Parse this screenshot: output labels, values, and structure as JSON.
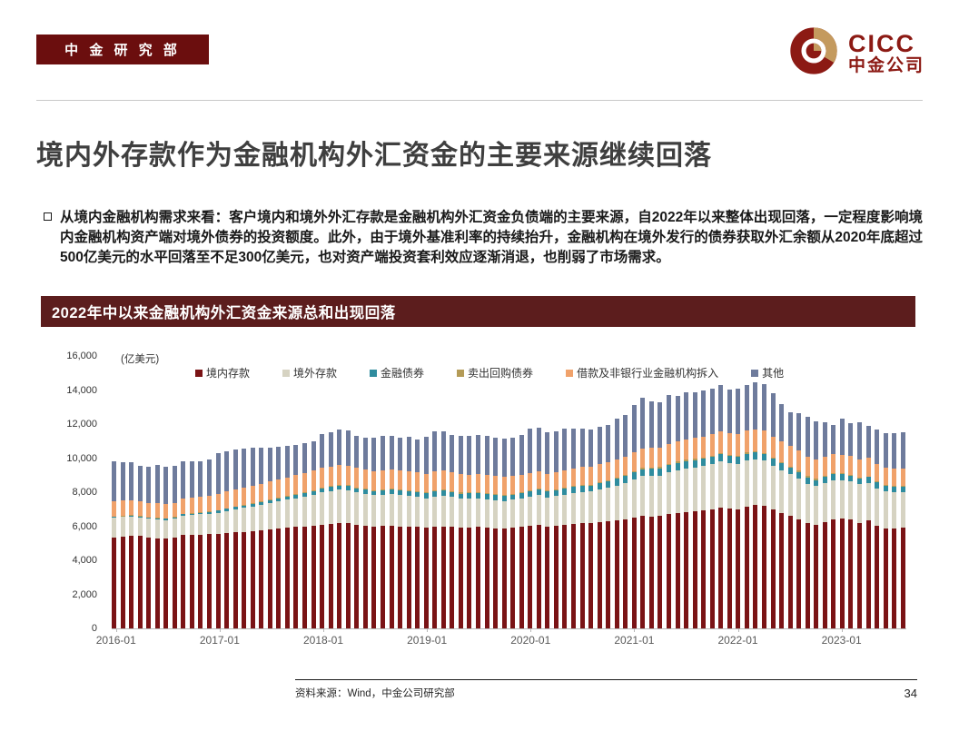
{
  "header": {
    "badge": "中 金 研 究 部",
    "logo_text": "CICC",
    "logo_subtext": "中金公司"
  },
  "title": "境内外存款作为金融机构外汇资金的主要来源继续回落",
  "bullet": {
    "text": "从境内金融机构需求来看：客户境内和境外外汇存款是金融机构外汇资金负债端的主要来源，自2022年以来整体出现回落，一定程度影响境内金融机构资产端对境外债券的投资额度。此外，由于境外基准利率的持续抬升，金融机构在境外发行的债券获取外汇余额从2020年底超过500亿美元的水平回落至不足300亿美元，也对资产端投资套利效应逐渐消退，也削弱了市场需求。"
  },
  "panel": {
    "title": "2022年中以来金融机构外汇资金来源总和出现回落"
  },
  "footer": {
    "source": "资料来源：Wind，中金公司研究部",
    "page": "34"
  },
  "colors": {
    "badge_bg": "#6B0E0E",
    "panel_header_bg": "#5C1D1D",
    "logo_red": "#8C1A14",
    "logo_gold": "#C49A5E"
  },
  "chart_data": {
    "type": "bar",
    "stacked": true,
    "title": "2022年中以来金融机构外汇资金来源总和出现回落",
    "unit": "(亿美元)",
    "ylim": [
      0,
      16000
    ],
    "yticks": [
      0,
      2000,
      4000,
      6000,
      8000,
      10000,
      12000,
      14000,
      16000
    ],
    "grid": false,
    "legend_position": "top",
    "x_tick_labels": [
      "2016-01",
      "2017-01",
      "2018-01",
      "2019-01",
      "2020-01",
      "2021-01",
      "2022-01",
      "2023-01"
    ],
    "categories": [
      "2016-01",
      "2016-02",
      "2016-03",
      "2016-04",
      "2016-05",
      "2016-06",
      "2016-07",
      "2016-08",
      "2016-09",
      "2016-10",
      "2016-11",
      "2016-12",
      "2017-01",
      "2017-02",
      "2017-03",
      "2017-04",
      "2017-05",
      "2017-06",
      "2017-07",
      "2017-08",
      "2017-09",
      "2017-10",
      "2017-11",
      "2017-12",
      "2018-01",
      "2018-02",
      "2018-03",
      "2018-04",
      "2018-05",
      "2018-06",
      "2018-07",
      "2018-08",
      "2018-09",
      "2018-10",
      "2018-11",
      "2018-12",
      "2019-01",
      "2019-02",
      "2019-03",
      "2019-04",
      "2019-05",
      "2019-06",
      "2019-07",
      "2019-08",
      "2019-09",
      "2019-10",
      "2019-11",
      "2019-12",
      "2020-01",
      "2020-02",
      "2020-03",
      "2020-04",
      "2020-05",
      "2020-06",
      "2020-07",
      "2020-08",
      "2020-09",
      "2020-10",
      "2020-11",
      "2020-12",
      "2021-01",
      "2021-02",
      "2021-03",
      "2021-04",
      "2021-05",
      "2021-06",
      "2021-07",
      "2021-08",
      "2021-09",
      "2021-10",
      "2021-11",
      "2021-12",
      "2022-01",
      "2022-02",
      "2022-03",
      "2022-04",
      "2022-05",
      "2022-06",
      "2022-07",
      "2022-08",
      "2022-09",
      "2022-10",
      "2022-11",
      "2022-12",
      "2023-01",
      "2023-02",
      "2023-03",
      "2023-04",
      "2023-05",
      "2023-06",
      "2023-07",
      "2023-08"
    ],
    "series": [
      {
        "name": "境内存款",
        "color": "#7A1315",
        "values": [
          5350,
          5400,
          5450,
          5420,
          5350,
          5300,
          5280,
          5320,
          5480,
          5500,
          5520,
          5540,
          5550,
          5600,
          5650,
          5680,
          5700,
          5750,
          5800,
          5850,
          5900,
          5950,
          6000,
          6050,
          6100,
          6150,
          6200,
          6180,
          6100,
          6050,
          6000,
          6020,
          6050,
          6000,
          5980,
          5950,
          5900,
          5980,
          6000,
          5950,
          5900,
          5920,
          5950,
          5920,
          5880,
          5850,
          5900,
          5950,
          6050,
          6100,
          6000,
          6050,
          6100,
          6150,
          6200,
          6180,
          6250,
          6300,
          6350,
          6400,
          6500,
          6600,
          6550,
          6600,
          6700,
          6800,
          6850,
          6900,
          6950,
          7000,
          7100,
          7050,
          7000,
          7150,
          7250,
          7200,
          7000,
          6800,
          6610,
          6420,
          6200,
          6100,
          6230,
          6420,
          6450,
          6400,
          6210,
          6340,
          6050,
          5880,
          5870,
          5900
        ]
      },
      {
        "name": "境外存款",
        "color": "#D6D3C2",
        "values": [
          1150,
          1140,
          1130,
          1100,
          1080,
          1100,
          1090,
          1110,
          1150,
          1160,
          1180,
          1200,
          1250,
          1300,
          1350,
          1400,
          1450,
          1500,
          1550,
          1600,
          1650,
          1700,
          1750,
          1800,
          1900,
          1920,
          1950,
          1930,
          1880,
          1850,
          1820,
          1840,
          1850,
          1830,
          1800,
          1780,
          1750,
          1780,
          1800,
          1760,
          1720,
          1700,
          1690,
          1680,
          1650,
          1630,
          1650,
          1680,
          1700,
          1720,
          1700,
          1720,
          1750,
          1800,
          1820,
          1850,
          1900,
          1950,
          2050,
          2150,
          2250,
          2350,
          2400,
          2380,
          2450,
          2500,
          2550,
          2560,
          2600,
          2650,
          2700,
          2650,
          2650,
          2700,
          2680,
          2650,
          2550,
          2500,
          2450,
          2400,
          2300,
          2250,
          2300,
          2280,
          2250,
          2230,
          2250,
          2200,
          2180,
          2150,
          2120,
          2100
        ]
      },
      {
        "name": "金融债券",
        "color": "#2F8C9E",
        "values": [
          40,
          45,
          50,
          55,
          60,
          65,
          70,
          75,
          80,
          85,
          90,
          100,
          110,
          120,
          130,
          140,
          150,
          160,
          170,
          180,
          190,
          200,
          210,
          215,
          220,
          230,
          240,
          245,
          250,
          255,
          260,
          265,
          270,
          272,
          275,
          278,
          280,
          285,
          290,
          295,
          300,
          302,
          305,
          308,
          310,
          312,
          315,
          318,
          320,
          325,
          330,
          335,
          340,
          345,
          350,
          355,
          360,
          370,
          380,
          390,
          400,
          410,
          415,
          420,
          425,
          430,
          430,
          430,
          430,
          430,
          430,
          425,
          420,
          415,
          410,
          405,
          400,
          390,
          385,
          380,
          375,
          370,
          365,
          360,
          350,
          348,
          345,
          342,
          338,
          332,
          326,
          320
        ]
      },
      {
        "name": "卖出回购债券",
        "color": "#B49B57",
        "values": [
          30,
          30,
          30,
          30,
          30,
          30,
          30,
          30,
          30,
          30,
          30,
          30,
          40,
          40,
          40,
          40,
          40,
          40,
          40,
          40,
          40,
          40,
          40,
          40,
          50,
          50,
          50,
          50,
          50,
          50,
          50,
          50,
          50,
          50,
          50,
          50,
          55,
          55,
          55,
          55,
          55,
          55,
          55,
          55,
          55,
          55,
          55,
          55,
          60,
          60,
          60,
          60,
          60,
          60,
          60,
          60,
          60,
          60,
          60,
          60,
          70,
          70,
          70,
          70,
          70,
          70,
          70,
          70,
          70,
          70,
          70,
          70,
          60,
          60,
          60,
          60,
          60,
          60,
          60,
          60,
          60,
          60,
          60,
          60,
          50,
          50,
          50,
          50,
          50,
          50,
          50,
          50
        ]
      },
      {
        "name": "借款及非银行业金融机构拆入",
        "color": "#F0A26B",
        "values": [
          900,
          890,
          880,
          850,
          840,
          850,
          840,
          850,
          880,
          890,
          900,
          920,
          950,
          970,
          990,
          1010,
          1030,
          1050,
          1070,
          1090,
          1100,
          1120,
          1140,
          1150,
          1150,
          1160,
          1170,
          1160,
          1140,
          1120,
          1100,
          1110,
          1120,
          1110,
          1100,
          1100,
          1100,
          1110,
          1120,
          1100,
          1080,
          1060,
          1050,
          1060,
          1050,
          1040,
          1050,
          1020,
          1000,
          1010,
          1000,
          1010,
          1020,
          1030,
          1040,
          1050,
          1060,
          1070,
          1080,
          1100,
          1120,
          1150,
          1160,
          1170,
          1180,
          1200,
          1210,
          1220,
          1230,
          1240,
          1250,
          1260,
          1280,
          1290,
          1300,
          1290,
          1260,
          1230,
          1200,
          1180,
          1150,
          1130,
          1140,
          1130,
          1100,
          1090,
          1080,
          1070,
          1060,
          1050,
          1040,
          1030
        ]
      },
      {
        "name": "其他",
        "color": "#6E7B9C",
        "values": [
          2330,
          2255,
          2200,
          2105,
          2120,
          2235,
          2160,
          2175,
          2220,
          2135,
          2120,
          2130,
          2400,
          2370,
          2340,
          2280,
          2230,
          2140,
          2000,
          1920,
          1840,
          1750,
          1720,
          1745,
          2000,
          1990,
          2090,
          2055,
          1900,
          1875,
          1950,
          2035,
          1960,
          1960,
          2035,
          1940,
          2175,
          2390,
          2295,
          2220,
          2245,
          2285,
          2290,
          2275,
          2235,
          2235,
          2250,
          2315,
          2620,
          2555,
          2410,
          2395,
          2440,
          2335,
          2290,
          2185,
          2230,
          2190,
          2410,
          2450,
          2800,
          2950,
          2765,
          2650,
          2885,
          2660,
          2740,
          2680,
          2710,
          2670,
          2760,
          2565,
          2650,
          2695,
          2750,
          2725,
          2550,
          2220,
          1995,
          2200,
          2345,
          2250,
          2005,
          1700,
          2130,
          1930,
          2165,
          1900,
          2020,
          2010,
          2065,
          2100
        ]
      }
    ]
  }
}
